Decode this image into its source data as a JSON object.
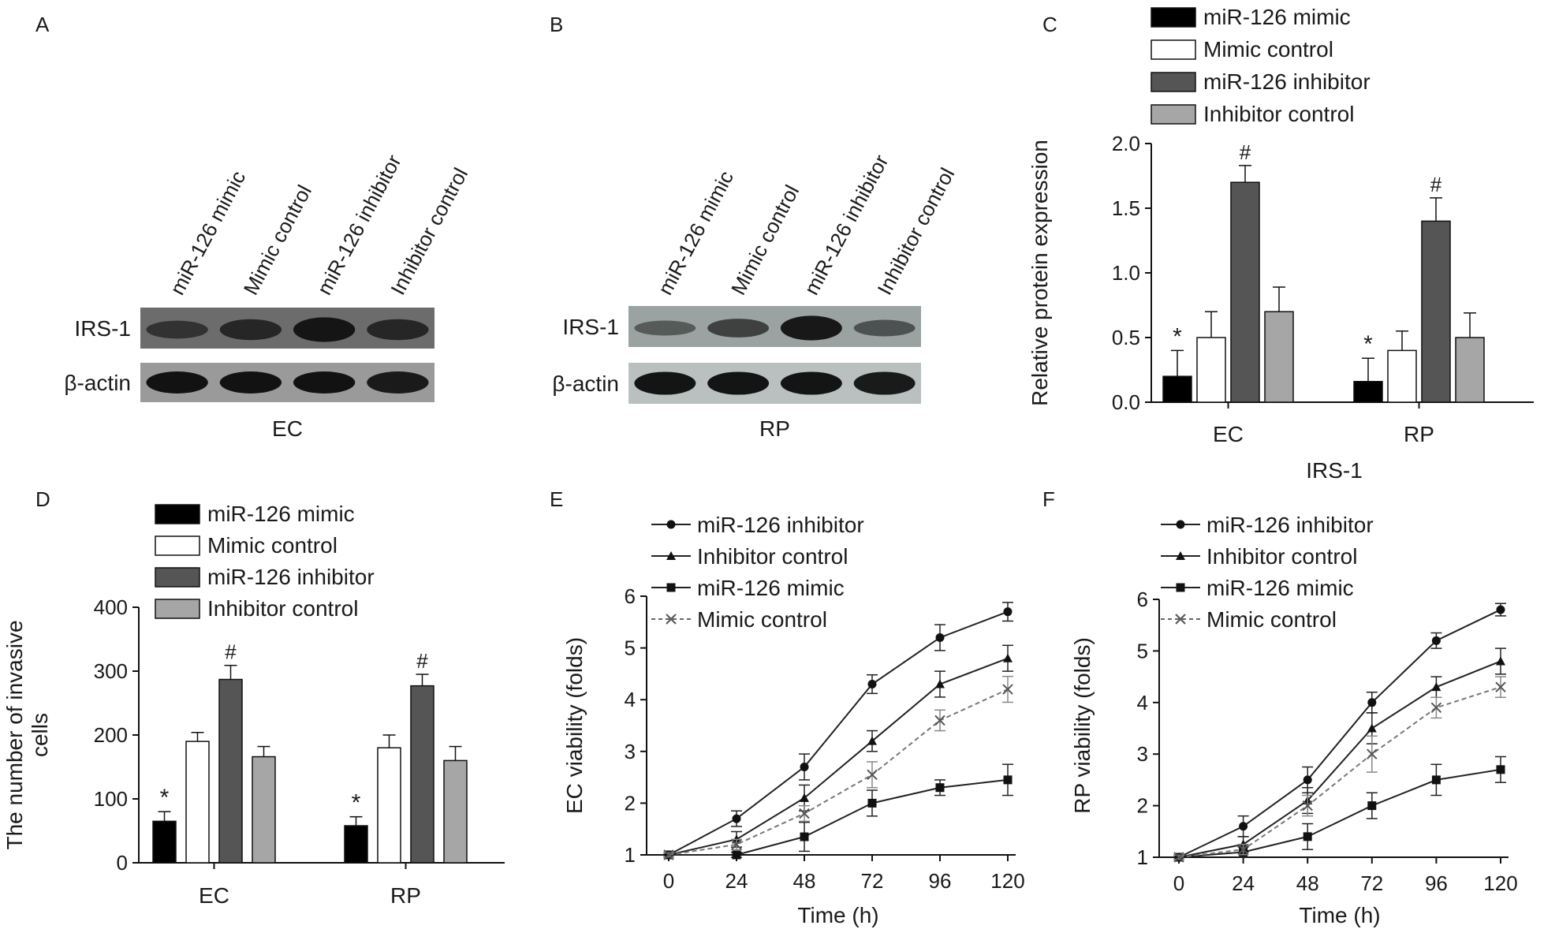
{
  "panels": {
    "A": {
      "letter": "A",
      "lanes": [
        "miR-126 mimic",
        "Mimic control",
        "miR-126 inhibitor",
        "Inhibitor control"
      ],
      "row1_label": "IRS-1",
      "row2_label": "β-actin",
      "caption": "EC",
      "irs1_intensity": [
        0.55,
        0.75,
        1.0,
        0.75
      ],
      "actin_intensity": [
        0.9,
        0.9,
        0.9,
        0.8
      ]
    },
    "B": {
      "letter": "B",
      "lanes": [
        "miR-126 mimic",
        "Mimic control",
        "miR-126 inhibitor",
        "Inhibitor control"
      ],
      "row1_label": "IRS-1",
      "row2_label": "β-actin",
      "caption": "RP",
      "irs1_intensity": [
        0.35,
        0.6,
        1.0,
        0.45
      ],
      "actin_intensity": [
        0.9,
        0.9,
        0.9,
        0.85
      ]
    },
    "C": {
      "letter": "C"
    },
    "D": {
      "letter": "D"
    },
    "E": {
      "letter": "E"
    },
    "F": {
      "letter": "F"
    }
  },
  "colors": {
    "mimic": "#000000",
    "mimic_control": "#ffffff",
    "inhibitor": "#555555",
    "inhibitor_control": "#a6a6a6"
  },
  "chart_data": [
    {
      "id": "C",
      "type": "bar",
      "categories": [
        "EC",
        "RP"
      ],
      "xlabel": "IRS-1",
      "ylabel": "Relative protein expression",
      "ylim": [
        0,
        2.0
      ],
      "yticks": [
        "0.0",
        "0.5",
        "1.0",
        "1.5",
        "2.0"
      ],
      "legend_position": "top",
      "series": [
        {
          "name": "miR-126 mimic",
          "values": [
            0.2,
            0.16
          ],
          "errors": [
            0.2,
            0.18
          ],
          "marks": [
            "*",
            "*"
          ]
        },
        {
          "name": "Mimic control",
          "values": [
            0.5,
            0.4
          ],
          "errors": [
            0.2,
            0.15
          ],
          "marks": [
            "",
            ""
          ]
        },
        {
          "name": "miR-126 inhibitor",
          "values": [
            1.7,
            1.4
          ],
          "errors": [
            0.13,
            0.18
          ],
          "marks": [
            "#",
            "#"
          ]
        },
        {
          "name": "Inhibitor control",
          "values": [
            0.7,
            0.5
          ],
          "errors": [
            0.19,
            0.19
          ],
          "marks": [
            "",
            ""
          ]
        }
      ]
    },
    {
      "id": "D",
      "type": "bar",
      "categories": [
        "EC",
        "RP"
      ],
      "xlabel": "",
      "ylabel": "The number of invasive cells",
      "ylabel_lines": [
        "The number of invasive",
        "cells"
      ],
      "ylim": [
        0,
        400
      ],
      "yticks": [
        "0",
        "100",
        "200",
        "300",
        "400"
      ],
      "legend_position": "top",
      "series": [
        {
          "name": "miR-126 mimic",
          "values": [
            65,
            58
          ],
          "errors": [
            15,
            14
          ],
          "marks": [
            "*",
            "*"
          ]
        },
        {
          "name": "Mimic control",
          "values": [
            190,
            180
          ],
          "errors": [
            14,
            20
          ],
          "marks": [
            "",
            ""
          ]
        },
        {
          "name": "miR-126 inhibitor",
          "values": [
            287,
            277
          ],
          "errors": [
            22,
            18
          ],
          "marks": [
            "#",
            "#"
          ]
        },
        {
          "name": "Inhibitor control",
          "values": [
            166,
            160
          ],
          "errors": [
            16,
            22
          ],
          "marks": [
            "",
            ""
          ]
        }
      ]
    },
    {
      "id": "E",
      "type": "line",
      "x": [
        0,
        24,
        48,
        72,
        96,
        120
      ],
      "xticks": [
        "0",
        "24",
        "48",
        "72",
        "96",
        "120"
      ],
      "xlabel": "Time (h)",
      "ylabel": "EC viability  (folds)",
      "ylim": [
        1,
        6
      ],
      "yticks": [
        "1",
        "2",
        "3",
        "4",
        "5",
        "6"
      ],
      "legend_position": "top-left",
      "series": [
        {
          "name": "miR-126 inhibitor",
          "marker": "circle",
          "dashed": false,
          "values": [
            1,
            1.7,
            2.7,
            4.3,
            5.2,
            5.7
          ],
          "errors": [
            0.04,
            0.15,
            0.25,
            0.18,
            0.25,
            0.18
          ]
        },
        {
          "name": "Inhibitor control",
          "marker": "triangle",
          "dashed": false,
          "values": [
            1,
            1.3,
            2.1,
            3.2,
            4.3,
            4.8
          ],
          "errors": [
            0.04,
            0.15,
            0.25,
            0.2,
            0.25,
            0.25
          ]
        },
        {
          "name": "miR-126 mimic",
          "marker": "square",
          "dashed": false,
          "values": [
            1,
            1.0,
            1.35,
            2.0,
            2.3,
            2.45
          ],
          "errors": [
            0.04,
            0.05,
            0.28,
            0.25,
            0.15,
            0.3
          ]
        },
        {
          "name": "Mimic control",
          "marker": "x",
          "dashed": true,
          "values": [
            1,
            1.2,
            1.8,
            2.55,
            3.6,
            4.2
          ],
          "errors": [
            0.04,
            0.1,
            0.15,
            0.25,
            0.2,
            0.25
          ]
        }
      ]
    },
    {
      "id": "F",
      "type": "line",
      "x": [
        0,
        24,
        48,
        72,
        96,
        120
      ],
      "xticks": [
        "0",
        "24",
        "48",
        "72",
        "96",
        "120"
      ],
      "xlabel": "Time (h)",
      "ylabel": "RP viability  (folds)",
      "ylim": [
        1,
        6
      ],
      "yticks": [
        "1",
        "2",
        "3",
        "4",
        "5",
        "6"
      ],
      "legend_position": "top-left",
      "series": [
        {
          "name": "miR-126 inhibitor",
          "marker": "circle",
          "dashed": false,
          "values": [
            1,
            1.6,
            2.5,
            4.0,
            5.2,
            5.8
          ],
          "errors": [
            0.04,
            0.2,
            0.25,
            0.2,
            0.15,
            0.12
          ]
        },
        {
          "name": "Inhibitor control",
          "marker": "triangle",
          "dashed": false,
          "values": [
            1,
            1.25,
            2.1,
            3.5,
            4.3,
            4.8
          ],
          "errors": [
            0.04,
            0.15,
            0.25,
            0.3,
            0.2,
            0.25
          ]
        },
        {
          "name": "miR-126 mimic",
          "marker": "square",
          "dashed": false,
          "values": [
            1,
            1.1,
            1.4,
            2.0,
            2.5,
            2.7
          ],
          "errors": [
            0.04,
            0.1,
            0.25,
            0.25,
            0.3,
            0.25
          ]
        },
        {
          "name": "Mimic control",
          "marker": "x",
          "dashed": true,
          "values": [
            1,
            1.15,
            2.0,
            3.0,
            3.9,
            4.3
          ],
          "errors": [
            0.04,
            0.1,
            0.2,
            0.35,
            0.2,
            0.2
          ]
        }
      ]
    }
  ]
}
